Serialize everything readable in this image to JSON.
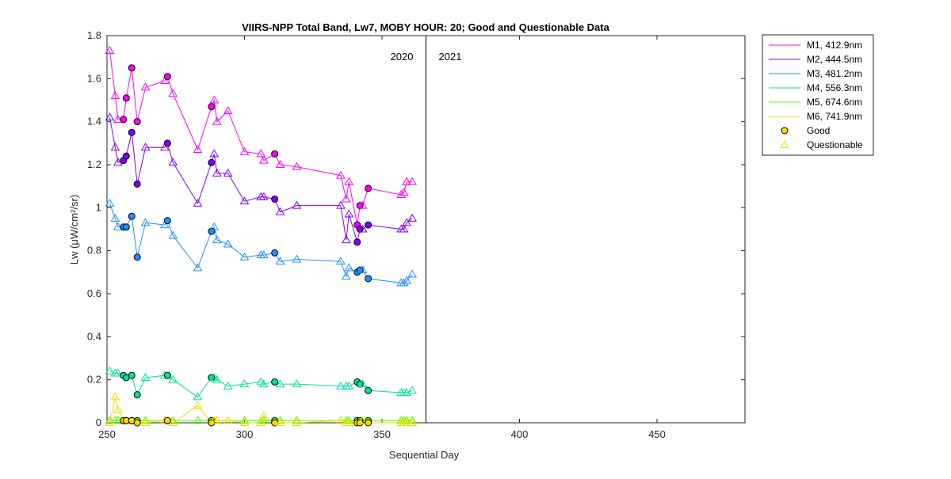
{
  "chart_data": {
    "type": "line",
    "title": "VIIRS-NPP Total Band,  Lw7, MOBY HOUR: 20;  Good and Questionable Data",
    "xlabel": "Sequential Day",
    "ylabel": "Lw (μW/cm²/sr)",
    "xlim": [
      250,
      482
    ],
    "ylim": [
      0,
      1.8
    ],
    "xticks": [
      250,
      300,
      350,
      400,
      450
    ],
    "yticks": [
      0,
      0.2,
      0.4,
      0.6,
      0.8,
      1,
      1.2,
      1.4,
      1.6,
      1.8
    ],
    "xtick_labels": [
      "250",
      "300",
      "350",
      "400",
      "450"
    ],
    "ytick_labels": [
      "0",
      "0.2",
      "0.4",
      "0.6",
      "0.8",
      "1",
      "1.2",
      "1.4",
      "1.6",
      "1.8"
    ],
    "grid": false,
    "legend_position": "outside-top-right",
    "year_divider": 366,
    "year_labels": [
      "2020",
      "2021"
    ],
    "x": [
      251,
      253,
      254,
      256,
      257,
      259,
      261,
      264,
      271,
      272,
      274,
      283,
      288,
      289,
      290,
      294,
      300,
      306,
      307,
      311,
      313,
      319,
      335,
      337,
      338,
      341,
      342,
      343,
      345,
      357,
      358,
      359,
      361
    ],
    "quality": [
      "Q",
      "Q",
      "Q",
      "G",
      "G",
      "G",
      "G",
      "Q",
      "Q",
      "G",
      "Q",
      "Q",
      "G",
      "Q",
      "Q",
      "Q",
      "Q",
      "Q",
      "Q",
      "G",
      "Q",
      "Q",
      "Q",
      "Q",
      "Q",
      "G",
      "G",
      "Q",
      "G",
      "Q",
      "Q",
      "Q",
      "Q"
    ],
    "series": [
      {
        "name": "M1, 412.9nm",
        "color": "#ff00ff",
        "values": [
          1.73,
          1.52,
          1.41,
          1.41,
          1.51,
          1.65,
          1.4,
          1.56,
          1.59,
          1.61,
          1.53,
          1.27,
          1.47,
          1.5,
          1.4,
          1.45,
          1.26,
          1.25,
          1.22,
          1.25,
          1.2,
          1.19,
          1.15,
          1.04,
          1.12,
          0.92,
          1.01,
          1.01,
          1.09,
          1.06,
          1.07,
          1.12,
          1.12
        ]
      },
      {
        "name": "M2, 444.5nm",
        "color": "#7f00ff",
        "values": [
          1.42,
          1.28,
          1.21,
          1.22,
          1.24,
          1.35,
          1.11,
          1.28,
          1.28,
          1.3,
          1.21,
          1.02,
          1.21,
          1.25,
          1.16,
          1.16,
          1.03,
          1.05,
          1.05,
          1.04,
          0.98,
          1.01,
          1.01,
          0.85,
          0.97,
          0.84,
          0.9,
          0.9,
          0.92,
          0.9,
          0.9,
          0.93,
          0.95
        ]
      },
      {
        "name": "M3, 481.2nm",
        "color": "#1e90ff",
        "values": [
          1.02,
          0.95,
          0.91,
          0.91,
          0.91,
          0.96,
          0.77,
          0.93,
          0.92,
          0.94,
          0.87,
          0.72,
          0.89,
          0.91,
          0.85,
          0.83,
          0.77,
          0.78,
          0.78,
          0.79,
          0.75,
          0.76,
          0.75,
          0.68,
          0.72,
          0.7,
          0.71,
          0.71,
          0.67,
          0.65,
          0.65,
          0.66,
          0.69
        ]
      },
      {
        "name": "M4, 556.3nm",
        "color": "#00e0a0",
        "values": [
          0.24,
          0.23,
          0.23,
          0.22,
          0.21,
          0.22,
          0.13,
          0.21,
          0.22,
          0.22,
          0.2,
          0.12,
          0.21,
          0.21,
          0.2,
          0.17,
          0.18,
          0.19,
          0.18,
          0.19,
          0.18,
          0.18,
          0.17,
          0.17,
          0.17,
          0.19,
          0.18,
          0.18,
          0.15,
          0.14,
          0.14,
          0.14,
          0.15
        ]
      },
      {
        "name": "M5, 674.6nm",
        "color": "#55ff00",
        "values": [
          0.01,
          0.01,
          0.01,
          0.01,
          0.01,
          0.01,
          0.01,
          0.01,
          0.01,
          0.01,
          0.01,
          0.01,
          0.01,
          0.01,
          0.01,
          0.01,
          0.01,
          0.01,
          0.01,
          0.01,
          0.01,
          0.01,
          0.01,
          0.01,
          0.01,
          0.01,
          0.01,
          0.01,
          0.01,
          0.01,
          0.01,
          0.01,
          0.01
        ]
      },
      {
        "name": "M6, 741.9nm",
        "color": "#ffd700",
        "values": [
          0.0,
          0.12,
          0.06,
          0.01,
          0.01,
          0.01,
          0.0,
          0.0,
          0.01,
          0.01,
          0.0,
          0.08,
          0.0,
          0.01,
          0.01,
          0.01,
          0.0,
          0.0,
          0.03,
          0.0,
          0.0,
          0.0,
          0.01,
          0.0,
          0.0,
          0.0,
          0.0,
          0.01,
          0.0,
          0.0,
          0.0,
          0.0,
          0.0
        ]
      }
    ],
    "marker_legend": [
      {
        "label": "Good",
        "marker": "circle",
        "color": "#ffd700"
      },
      {
        "label": "Questionable",
        "marker": "triangle",
        "color": "#ffd700"
      }
    ]
  }
}
